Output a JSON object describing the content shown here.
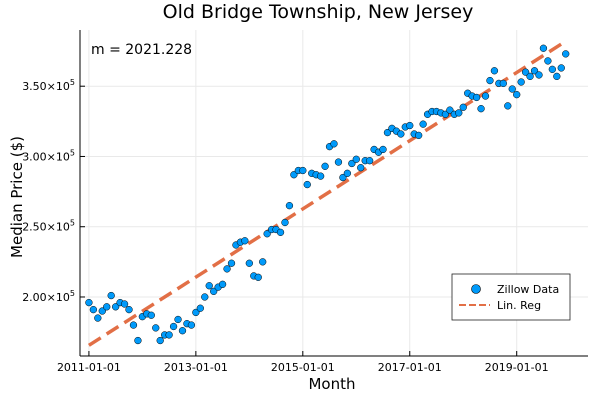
{
  "chart_data": {
    "type": "scatter",
    "title": "Old Bridge Township, New Jersey",
    "xlabel": "Month",
    "ylabel": "Median Price ($)",
    "annotation": "m = 2021.228",
    "x_ticks": [
      "2011-01-01",
      "2013-01-01",
      "2015-01-01",
      "2017-01-01",
      "2019-01-01"
    ],
    "y_ticks": [
      {
        "value": 200000,
        "base": "2.00×10",
        "exp": "5"
      },
      {
        "value": 250000,
        "base": "2.50×10",
        "exp": "5"
      },
      {
        "value": 300000,
        "base": "3.00×10",
        "exp": "5"
      },
      {
        "value": 350000,
        "base": "3.50×10",
        "exp": "5"
      }
    ],
    "xlim": [
      "2010-11-01",
      "2020-05-01"
    ],
    "ylim": [
      158000,
      390000
    ],
    "grid": true,
    "legend_position": "bottom-right",
    "colors": {
      "scatter": "#009AFA",
      "regression": "#E26F46"
    },
    "series": [
      {
        "name": "Zillow Data",
        "kind": "scatter",
        "x": [
          "2011-01",
          "2011-02",
          "2011-03",
          "2011-04",
          "2011-05",
          "2011-06",
          "2011-07",
          "2011-08",
          "2011-09",
          "2011-10",
          "2011-11",
          "2011-12",
          "2012-01",
          "2012-02",
          "2012-03",
          "2012-04",
          "2012-05",
          "2012-06",
          "2012-07",
          "2012-08",
          "2012-09",
          "2012-10",
          "2012-11",
          "2012-12",
          "2013-01",
          "2013-02",
          "2013-03",
          "2013-04",
          "2013-05",
          "2013-06",
          "2013-07",
          "2013-08",
          "2013-09",
          "2013-10",
          "2013-11",
          "2013-12",
          "2014-01",
          "2014-02",
          "2014-03",
          "2014-04",
          "2014-05",
          "2014-06",
          "2014-07",
          "2014-08",
          "2014-09",
          "2014-10",
          "2014-11",
          "2014-12",
          "2015-01",
          "2015-02",
          "2015-03",
          "2015-04",
          "2015-05",
          "2015-06",
          "2015-07",
          "2015-08",
          "2015-09",
          "2015-10",
          "2015-11",
          "2015-12",
          "2016-01",
          "2016-02",
          "2016-03",
          "2016-04",
          "2016-05",
          "2016-06",
          "2016-07",
          "2016-08",
          "2016-09",
          "2016-10",
          "2016-11",
          "2016-12",
          "2017-01",
          "2017-02",
          "2017-03",
          "2017-04",
          "2017-05",
          "2017-06",
          "2017-07",
          "2017-08",
          "2017-09",
          "2017-10",
          "2017-11",
          "2017-12",
          "2018-01",
          "2018-02",
          "2018-03",
          "2018-04",
          "2018-05",
          "2018-06",
          "2018-07",
          "2018-08",
          "2018-09",
          "2018-10",
          "2018-11",
          "2018-12",
          "2019-01",
          "2019-02",
          "2019-03",
          "2019-04",
          "2019-05",
          "2019-06",
          "2019-07",
          "2019-08",
          "2019-09",
          "2019-10",
          "2019-11",
          "2019-12"
        ],
        "y": [
          196000,
          191000,
          185000,
          190000,
          193000,
          201000,
          193000,
          196000,
          195000,
          191000,
          180000,
          169000,
          186000,
          188000,
          187000,
          178000,
          169000,
          173000,
          173000,
          179000,
          184000,
          176000,
          181000,
          180000,
          189000,
          192000,
          200000,
          208000,
          204000,
          207000,
          209000,
          220000,
          224000,
          237000,
          239000,
          240000,
          224000,
          215000,
          214000,
          225000,
          245000,
          248000,
          248000,
          246000,
          253000,
          265000,
          287000,
          290000,
          290000,
          280000,
          288000,
          287000,
          286000,
          293000,
          307000,
          309000,
          296000,
          285000,
          288000,
          295000,
          298000,
          292000,
          297000,
          297000,
          305000,
          303000,
          305000,
          317000,
          320000,
          318000,
          316000,
          321000,
          322000,
          316000,
          315000,
          323000,
          330000,
          332000,
          332000,
          331000,
          330000,
          333000,
          330000,
          331000,
          335000,
          345000,
          343000,
          342000,
          334000,
          343000,
          354000,
          361000,
          352000,
          352000,
          336000,
          348000,
          344000,
          353000,
          360000,
          357000,
          361000,
          358000,
          377000,
          368000,
          362000,
          357000,
          363000,
          373000
        ]
      },
      {
        "name": "Lin. Reg",
        "kind": "line",
        "x": [
          "2011-01",
          "2019-12"
        ],
        "y": [
          165600,
          382000
        ]
      }
    ]
  }
}
